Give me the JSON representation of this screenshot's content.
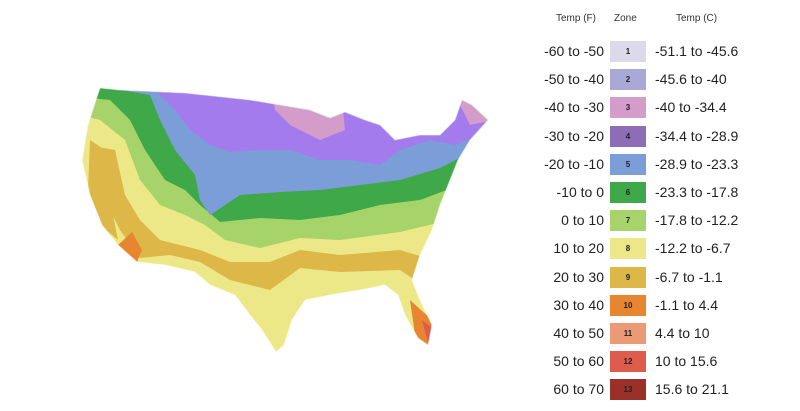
{
  "legend": {
    "headers": {
      "temp_f": "Temp (F)",
      "zone": "Zone",
      "temp_c": "Temp (C)"
    },
    "rows": [
      {
        "temp_f": "-60 to -50",
        "zone": "1",
        "temp_c": "-51.1 to -45.6",
        "color": "#dcd9ea"
      },
      {
        "temp_f": "-50 to -40",
        "zone": "2",
        "temp_c": "-45.6 to -40",
        "color": "#a9a8d6"
      },
      {
        "temp_f": "-40 to -30",
        "zone": "3",
        "temp_c": "-40 to -34.4",
        "color": "#d39cc9"
      },
      {
        "temp_f": "-30 to -20",
        "zone": "4",
        "temp_c": "-34.4 to -28.9",
        "color": "#8d6db5"
      },
      {
        "temp_f": "-20 to -10",
        "zone": "5",
        "temp_c": "-28.9 to -23.3",
        "color": "#7b9ed8"
      },
      {
        "temp_f": "-10 to 0",
        "zone": "6",
        "temp_c": "-23.3 to -17.8",
        "color": "#3fa94a"
      },
      {
        "temp_f": "0 to 10",
        "zone": "7",
        "temp_c": "-17.8 to -12.2",
        "color": "#a6d46a"
      },
      {
        "temp_f": "10 to 20",
        "zone": "8",
        "temp_c": "-12.2 to -6.7",
        "color": "#ece888"
      },
      {
        "temp_f": "20 to 30",
        "zone": "9",
        "temp_c": "-6.7 to -1.1",
        "color": "#ddb848"
      },
      {
        "temp_f": "30 to 40",
        "zone": "10",
        "temp_c": "-1.1 to 4.4",
        "color": "#e88530"
      },
      {
        "temp_f": "40 to 50",
        "zone": "11",
        "temp_c": "4.4 to 10",
        "color": "#ec9a76"
      },
      {
        "temp_f": "50 to 60",
        "zone": "12",
        "temp_c": "10 to 15.6",
        "color": "#dd5c4c"
      },
      {
        "temp_f": "60 to 70",
        "zone": "13",
        "temp_c": "15.6 to 21.1",
        "color": "#99302a"
      }
    ]
  }
}
